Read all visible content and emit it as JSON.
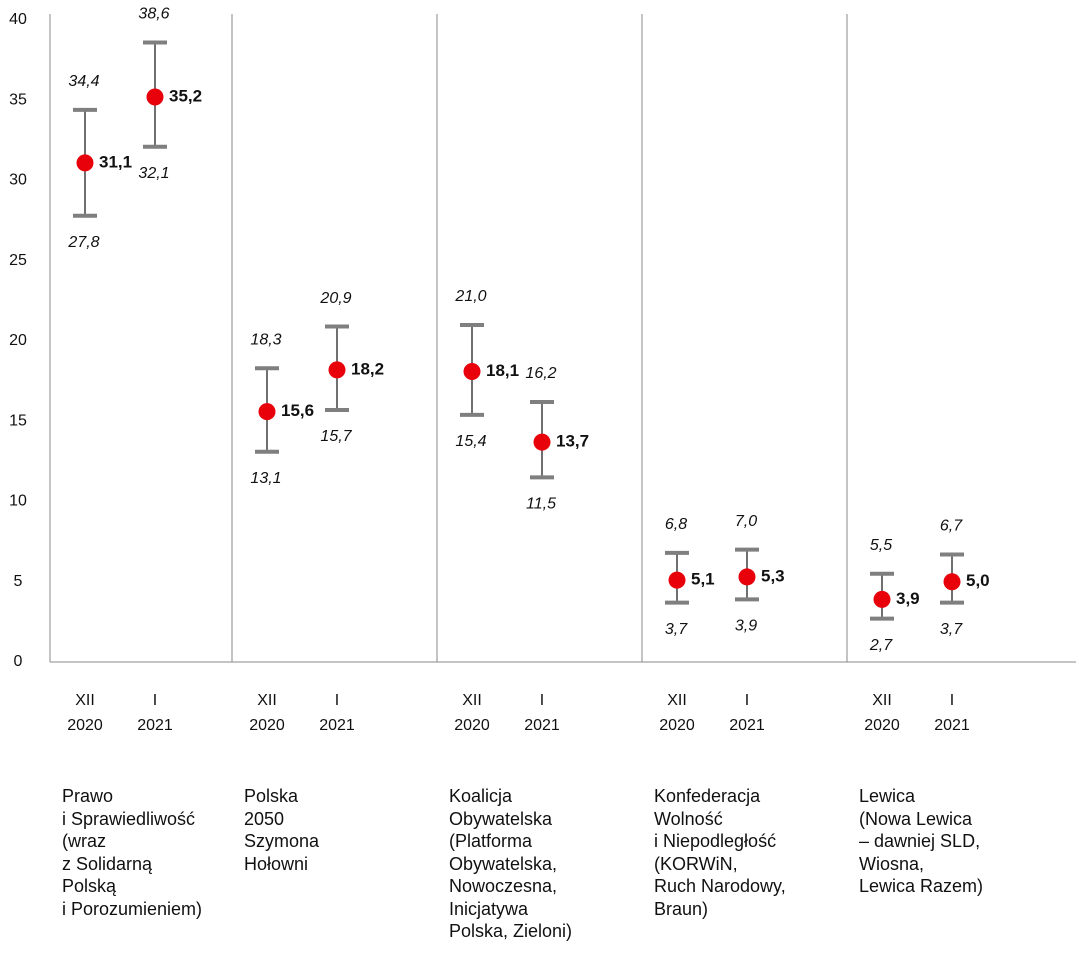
{
  "chart_data": {
    "type": "scatter",
    "ylim": [
      0,
      40
    ],
    "yticks": [
      "0",
      "5",
      "10",
      "15",
      "20",
      "25",
      "30",
      "35",
      "40"
    ],
    "grid": false,
    "legend": "none",
    "colors": {
      "point": "#e8000b",
      "whisker": "#7f7f7f",
      "stem": "#404040",
      "axis": "#8a8a8a"
    },
    "period_labels": [
      {
        "top": "XII",
        "bottom": "2020"
      },
      {
        "top": "I",
        "bottom": "2021"
      }
    ],
    "groups": [
      {
        "name": "Prawo\ni Sprawiedliwość\n(wraz\nz Solidarną\nPolską\ni Porozumieniem)",
        "points": [
          {
            "value": 31.1,
            "value_label": "31,1",
            "upper": 34.4,
            "upper_label": "34,4",
            "lower": 27.8,
            "lower_label": "27,8"
          },
          {
            "value": 35.2,
            "value_label": "35,2",
            "upper": 38.6,
            "upper_label": "38,6",
            "lower": 32.1,
            "lower_label": "32,1"
          }
        ]
      },
      {
        "name": "Polska\n2050\nSzymona\nHołowni",
        "points": [
          {
            "value": 15.6,
            "value_label": "15,6",
            "upper": 18.3,
            "upper_label": "18,3",
            "lower": 13.1,
            "lower_label": "13,1"
          },
          {
            "value": 18.2,
            "value_label": "18,2",
            "upper": 20.9,
            "upper_label": "20,9",
            "lower": 15.7,
            "lower_label": "15,7"
          }
        ]
      },
      {
        "name": "Koalicja\nObywatelska\n(Platforma\nObywatelska,\nNowoczesna,\nInicjatywa\nPolska, Zieloni)",
        "points": [
          {
            "value": 18.1,
            "value_label": "18,1",
            "upper": 21.0,
            "upper_label": "21,0",
            "lower": 15.4,
            "lower_label": "15,4"
          },
          {
            "value": 13.7,
            "value_label": "13,7",
            "upper": 16.2,
            "upper_label": "16,2",
            "lower": 11.5,
            "lower_label": "11,5"
          }
        ]
      },
      {
        "name": "Konfederacja\nWolność\ni Niepodległość\n(KORWiN,\nRuch Narodowy,\nBraun)",
        "points": [
          {
            "value": 5.1,
            "value_label": "5,1",
            "upper": 6.8,
            "upper_label": "6,8",
            "lower": 3.7,
            "lower_label": "3,7"
          },
          {
            "value": 5.3,
            "value_label": "5,3",
            "upper": 7.0,
            "upper_label": "7,0",
            "lower": 3.9,
            "lower_label": "3,9"
          }
        ]
      },
      {
        "name": "Lewica\n(Nowa Lewica\n– dawniej SLD,\nWiosna,\nLewica Razem)",
        "points": [
          {
            "value": 3.9,
            "value_label": "3,9",
            "upper": 5.5,
            "upper_label": "5,5",
            "lower": 2.7,
            "lower_label": "2,7"
          },
          {
            "value": 5.0,
            "value_label": "5,0",
            "upper": 6.7,
            "upper_label": "6,7",
            "lower": 3.7,
            "lower_label": "3,7"
          }
        ]
      }
    ]
  }
}
